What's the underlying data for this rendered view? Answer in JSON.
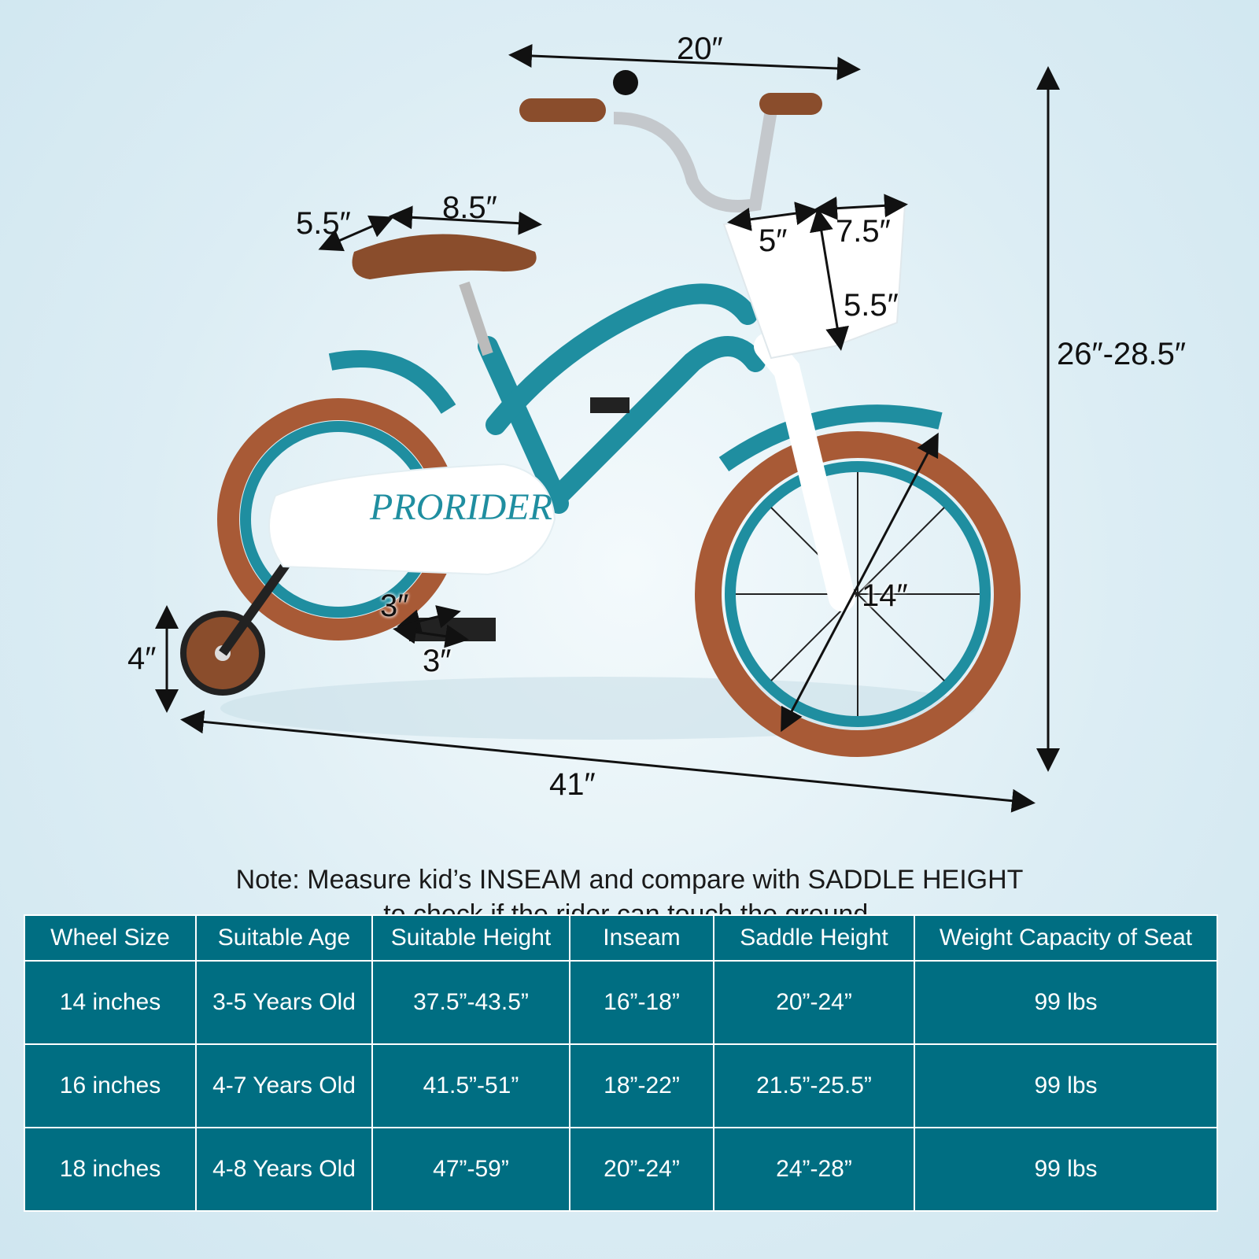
{
  "brand_logo": "PRORIDER",
  "dimensions": {
    "handlebar_width": "20″",
    "overall_height": "26″-28.5″",
    "saddle_width": "5.5″",
    "saddle_length": "8.5″",
    "basket_depth": "5″",
    "basket_width": "7.5″",
    "basket_height": "5.5″",
    "wheel_diameter": "14″",
    "pedal_width": "3″",
    "pedal_length": "3″",
    "training_wheel": "4″",
    "overall_length": "41″"
  },
  "note": {
    "line1": "Note: Measure kid’s INSEAM and compare with SADDLE HEIGHT",
    "line2": "to check if the rider can touch the ground."
  },
  "colors": {
    "table": "#006e82",
    "frame": "#1f8ea0",
    "tire": "#a85a36",
    "saddle": "#8a4d2c"
  },
  "table": {
    "headers": [
      "Wheel Size",
      "Suitable Age",
      "Suitable Height",
      "Inseam",
      "Saddle Height",
      "Weight Capacity of Seat"
    ],
    "rows": [
      [
        "14 inches",
        "3-5 Years Old",
        "37.5”-43.5”",
        "16”-18”",
        "20”-24”",
        "99 lbs"
      ],
      [
        "16 inches",
        "4-7 Years Old",
        "41.5”-51”",
        "18”-22”",
        "21.5”-25.5”",
        "99 lbs"
      ],
      [
        "18 inches",
        "4-8 Years Old",
        "47”-59”",
        "20”-24”",
        "24”-28”",
        "99 lbs"
      ]
    ]
  }
}
